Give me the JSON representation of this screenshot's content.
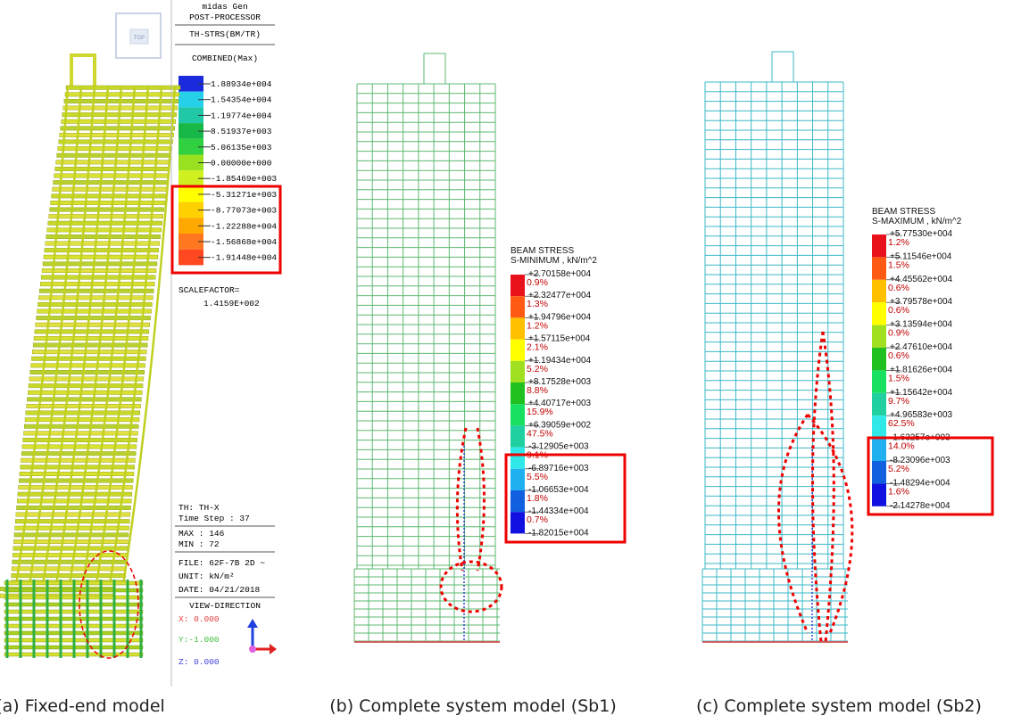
{
  "panel_a": {
    "cube_label": "TOP",
    "header": [
      "midas Gen",
      "POST-PROCESSOR",
      "TH-STRS(BM/TR)",
      "COMBINED(Max)"
    ],
    "legend": [
      "1.88934e+004",
      "1.54354e+004",
      "1.19774e+004",
      "8.51937e+003",
      "5.06135e+003",
      "0.00000e+000",
      "-1.85469e+003",
      "-5.31271e+003",
      "-8.77073e+003",
      "-1.22288e+004",
      "-1.56868e+004",
      "-1.91448e+004"
    ],
    "scale_label": "SCALEFACTOR=",
    "scale_value": "1.4159E+002",
    "info": [
      "TH: TH-X",
      "Time Step : 37",
      "MAX : 146",
      "MIN : 72",
      "FILE: 62F-7B 2D ~",
      "UNIT: kN/m²",
      "DATE: 04/21/2018"
    ],
    "view_title": "VIEW-DIRECTION",
    "view": [
      "X: 0.000",
      "Y:-1.000",
      "Z: 0.000"
    ],
    "caption": "(a) Fixed-end model"
  },
  "panel_b": {
    "title": "BEAM STRESS",
    "subtitle": "S-MINIMUM , kN/m^2",
    "levels": [
      "+2.70158e+004",
      "+2.32477e+004",
      "+1.94796e+004",
      "+1.57115e+004",
      "+1.19434e+004",
      "+8.17528e+003",
      "+4.40717e+003",
      "+6.39059e+002",
      "-3.12905e+003",
      "-6.89716e+003",
      "-1.06653e+004",
      "-1.44334e+004",
      "-1.82015e+004"
    ],
    "percents": [
      "0.9%",
      "1.3%",
      "1.2%",
      "2.1%",
      "5.2%",
      "8.8%",
      "15.9%",
      "47.5%",
      "9.1%",
      "5.5%",
      "1.8%",
      "0.7%"
    ],
    "caption": "(b) Complete system model (Sb1)"
  },
  "panel_c": {
    "title": "BEAM STRESS",
    "subtitle": "S-MAXIMUM , kN/m^2",
    "levels": [
      "+5.77530e+004",
      "+5.11546e+004",
      "+4.45562e+004",
      "+3.79578e+004",
      "+3.13594e+004",
      "+2.47610e+004",
      "+1.81626e+004",
      "+1.15642e+004",
      "+4.96583e+003",
      "-1.63257e+003",
      "-8.23096e+003",
      "-1.48294e+004",
      "-2.14278e+004"
    ],
    "percents": [
      "1.2%",
      "1.5%",
      "0.6%",
      "0.6%",
      "0.9%",
      "0.6%",
      "1.5%",
      "9.7%",
      "62.5%",
      "14.0%",
      "5.2%",
      "1.6%"
    ],
    "caption": "(c) Complete system model (Sb2)"
  }
}
